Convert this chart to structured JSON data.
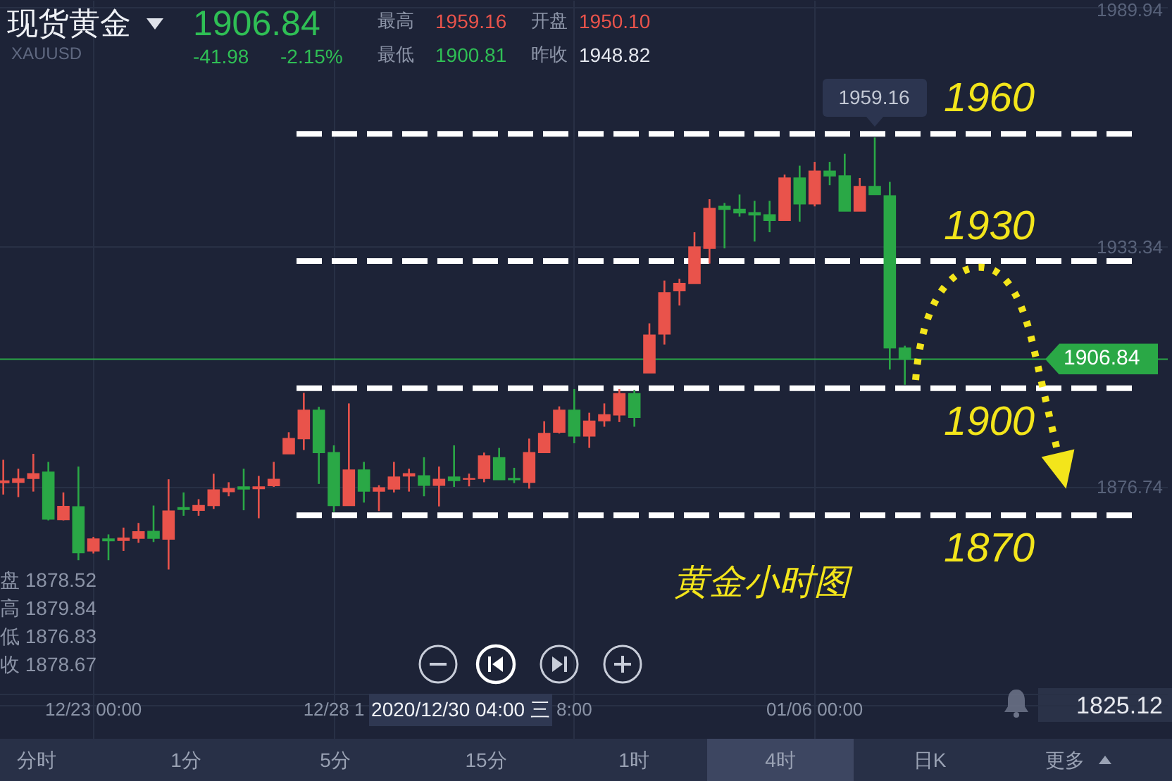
{
  "chart_data": {
    "type": "candlestick",
    "title": "现货黄金",
    "subtitle": "XAUUSD",
    "categories": [
      null,
      null,
      null,
      null,
      null,
      null,
      "12/23 00:00",
      null,
      null,
      null,
      null,
      null,
      null,
      null,
      null,
      null,
      null,
      null,
      null,
      null,
      null,
      null,
      "12/28 1",
      null,
      null,
      null,
      null,
      null,
      null,
      null,
      null,
      null,
      null,
      null,
      null,
      null,
      null,
      null,
      "8:00",
      null,
      null,
      null,
      null,
      null,
      null,
      null,
      null,
      null,
      null,
      null,
      null,
      null,
      null,
      null,
      "01/06 00:00",
      null,
      null,
      null,
      null,
      null,
      null,
      null,
      null,
      null,
      null,
      null,
      null,
      null,
      null,
      null,
      null,
      null,
      null,
      null,
      null,
      null,
      null,
      null
    ],
    "ohlc": [
      [
        1877.7,
        1883.1,
        1874.9,
        1878.1
      ],
      [
        1877.8,
        1881.0,
        1874.3,
        1878.6
      ],
      [
        1878.7,
        1884.5,
        1875.6,
        1879.8
      ],
      [
        1880.2,
        1882.6,
        1868.8,
        1869.1
      ],
      [
        1869.0,
        1875.4,
        1868.8,
        1872.1
      ],
      [
        1872.0,
        1881.5,
        1859.4,
        1861.2
      ],
      [
        1861.6,
        1864.9,
        1861.0,
        1864.4
      ],
      [
        1864.4,
        1865.5,
        1859.4,
        1864.0
      ],
      [
        1864.1,
        1867.1,
        1861.6,
        1864.6
      ],
      [
        1864.6,
        1868.2,
        1863.5,
        1866.1
      ],
      [
        1866.2,
        1872.3,
        1863.7,
        1864.6
      ],
      [
        1864.4,
        1878.5,
        1857.2,
        1871.0
      ],
      [
        1871.8,
        1875.4,
        1869.9,
        1871.4
      ],
      [
        1871.2,
        1873.8,
        1869.9,
        1872.3
      ],
      [
        1872.3,
        1879.8,
        1871.5,
        1876.0
      ],
      [
        1875.6,
        1877.8,
        1874.5,
        1876.3
      ],
      [
        1876.7,
        1881.0,
        1871.2,
        1876.2
      ],
      [
        1876.3,
        1879.3,
        1869.3,
        1876.7
      ],
      [
        1877.0,
        1882.6,
        1876.7,
        1878.5
      ],
      [
        1884.5,
        1889.6,
        1884.5,
        1888.1
      ],
      [
        1888.1,
        1898.9,
        1885.4,
        1894.8
      ],
      [
        1894.8,
        1895.6,
        1877.4,
        1884.8
      ],
      [
        1884.8,
        1886.5,
        1870.8,
        1872.3
      ],
      [
        1872.3,
        1896.4,
        1872.3,
        1880.7
      ],
      [
        1880.7,
        1882.6,
        1873.0,
        1875.7
      ],
      [
        1875.7,
        1877.1,
        1871.0,
        1876.5
      ],
      [
        1876.2,
        1882.6,
        1875.4,
        1879.0
      ],
      [
        1879.3,
        1881.0,
        1875.6,
        1879.8
      ],
      [
        1879.3,
        1883.7,
        1874.5,
        1877.1
      ],
      [
        1877.1,
        1881.5,
        1872.1,
        1878.5
      ],
      [
        1879.0,
        1886.5,
        1876.7,
        1878.2
      ],
      [
        1878.52,
        1879.84,
        1876.83,
        1878.67
      ],
      [
        1878.7,
        1884.8,
        1877.8,
        1884.0
      ],
      [
        1883.6,
        1885.9,
        1878.4,
        1878.4
      ],
      [
        1878.7,
        1881.2,
        1877.6,
        1878.4
      ],
      [
        1877.8,
        1888.1,
        1876.3,
        1884.8
      ],
      [
        1884.8,
        1892.2,
        1884.8,
        1889.3
      ],
      [
        1889.6,
        1895.7,
        1889.3,
        1894.8
      ],
      [
        1894.8,
        1899.8,
        1887.0,
        1888.7
      ],
      [
        1888.7,
        1894.2,
        1885.9,
        1892.2
      ],
      [
        1892.3,
        1896.4,
        1890.9,
        1893.7
      ],
      [
        1893.7,
        1899.8,
        1892.0,
        1898.7
      ],
      [
        1898.7,
        1899.6,
        1890.9,
        1893.1
      ],
      [
        1903.6,
        1915.3,
        1903.6,
        1912.5
      ],
      [
        1912.8,
        1925.4,
        1910.3,
        1922.5
      ],
      [
        1923.0,
        1925.8,
        1919.5,
        1924.7
      ],
      [
        1924.7,
        1936.8,
        1924.7,
        1933.3
      ],
      [
        1933.0,
        1944.6,
        1929.4,
        1942.4
      ],
      [
        1942.9,
        1943.7,
        1933.0,
        1942.2
      ],
      [
        1942.2,
        1945.7,
        1940.5,
        1941.4
      ],
      [
        1941.4,
        1944.2,
        1934.6,
        1940.9
      ],
      [
        1940.9,
        1944.2,
        1936.8,
        1939.6
      ],
      [
        1939.6,
        1950.4,
        1939.6,
        1949.6
      ],
      [
        1949.6,
        1952.5,
        1939.3,
        1943.5
      ],
      [
        1943.5,
        1953.4,
        1942.9,
        1951.2
      ],
      [
        1951.2,
        1953.4,
        1947.9,
        1950.1
      ],
      [
        1950.1,
        1955.3,
        1941.8,
        1941.8
      ],
      [
        1941.8,
        1949.6,
        1941.8,
        1947.6
      ],
      [
        1947.6,
        1959.16,
        1945.7,
        1945.7
      ],
      [
        1945.4,
        1948.7,
        1904.4,
        1909.5
      ],
      [
        1909.5,
        1910.0,
        1900.81,
        1906.84
      ],
      null,
      null,
      null,
      null,
      null,
      null,
      null,
      null,
      null,
      null,
      null,
      null,
      null,
      null,
      null,
      null,
      null
    ],
    "colors": [
      "#e9534b",
      "#e9534b",
      "#e9534b",
      "#2aa846",
      "#e9534b",
      "#2aa846",
      "#e9534b",
      "#2aa846",
      "#e9534b",
      "#e9534b",
      "#2aa846",
      "#e9534b",
      "#2aa846",
      "#e9534b",
      "#e9534b",
      "#e9534b",
      "#2aa846",
      "#e9534b",
      "#e9534b",
      "#e9534b",
      "#e9534b",
      "#2aa846",
      "#2aa846",
      "#e9534b",
      "#2aa846",
      "#e9534b",
      "#e9534b",
      "#e9534b",
      "#2aa846",
      "#e9534b",
      "#2aa846",
      "#e9534b",
      "#e9534b",
      "#2aa846",
      "#2aa846",
      "#e9534b",
      "#e9534b",
      "#e9534b",
      "#2aa846",
      "#e9534b",
      "#e9534b",
      "#e9534b",
      "#2aa846",
      "#e9534b",
      "#e9534b",
      "#e9534b",
      "#e9534b",
      "#e9534b",
      "#2aa846",
      "#2aa846",
      "#2aa846",
      "#2aa846",
      "#e9534b",
      "#2aa846",
      "#e9534b",
      "#2aa846",
      "#2aa846",
      "#e9534b",
      "#2aa846",
      "#2aa846",
      "#2aa846",
      null,
      null,
      null,
      null,
      null,
      null,
      null,
      null,
      null,
      null,
      null,
      null,
      null,
      null,
      null,
      null,
      null
    ],
    "ylim": [
      1807.3,
      1991.6
    ],
    "yticks": [
      1989.94,
      1933.34,
      1876.74,
      1825.12
    ],
    "grid": true,
    "ref_lines": [
      {
        "axis": "y",
        "value": 1906.84,
        "label": "1906.84",
        "color": "#2aa846",
        "line_style": "solid"
      },
      {
        "axis": "y",
        "value": 1960,
        "label": "1960",
        "color": "#ffffff",
        "line_style": "dashed"
      },
      {
        "axis": "y",
        "value": 1930,
        "label": "1930",
        "color": "#ffffff",
        "line_style": "dashed"
      },
      {
        "axis": "y",
        "value": 1900,
        "label": "1900",
        "color": "#ffffff",
        "line_style": "dashed"
      },
      {
        "axis": "y",
        "value": 1870,
        "label": "1870",
        "color": "#ffffff",
        "line_style": "dashed"
      }
    ],
    "annotations": [
      "1906.84",
      "-41.98",
      "-2.15%",
      "最高",
      "1959.16",
      "开盘",
      "1950.10",
      "最低",
      "1900.81",
      "昨收",
      "1948.82",
      "盘 1878.52",
      "高 1879.84",
      "低 1876.83",
      "收 1878.67",
      {
        "text": "1959.16",
        "y": 1959.16
      },
      "2020/12/30 04:00 三",
      "黄金小时图",
      "分时",
      "1分",
      "5分",
      "15分",
      "1时",
      "4时",
      "日K",
      "更多"
    ]
  }
}
